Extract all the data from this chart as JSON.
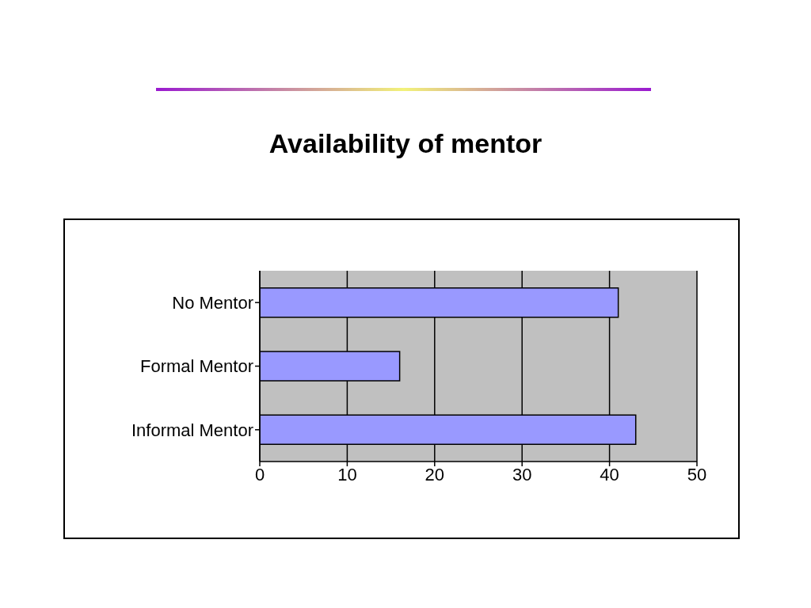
{
  "chart_data": {
    "type": "bar",
    "orientation": "horizontal",
    "title": "Availability of mentor",
    "categories": [
      "No Mentor",
      "Formal Mentor",
      "Informal Mentor"
    ],
    "values": [
      41,
      16,
      43
    ],
    "color": "#9999ff",
    "xlim": [
      0,
      50
    ],
    "xticks": [
      0,
      10,
      20,
      30,
      40,
      50
    ],
    "grid": "x"
  }
}
